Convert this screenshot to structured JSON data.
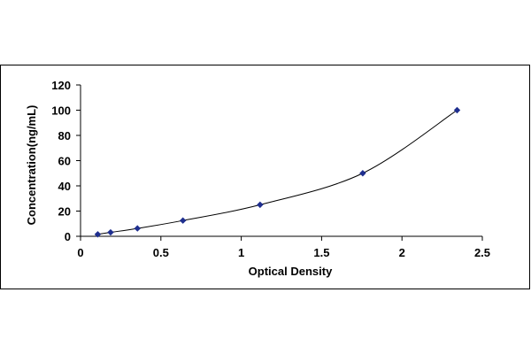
{
  "chart_data": {
    "type": "scatter",
    "title": "",
    "xlabel": "Optical Density",
    "ylabel": "Concentration(ng/mL)",
    "xlim": [
      0,
      2.5
    ],
    "ylim": [
      0,
      120
    ],
    "xticks": [
      "0",
      "0.5",
      "1",
      "1.5",
      "2",
      "2.5"
    ],
    "yticks": [
      "0",
      "20",
      "40",
      "60",
      "80",
      "100",
      "120"
    ],
    "grid": false,
    "legend": "none",
    "trendline": "smooth curve through points",
    "series": [
      {
        "color": "#1f2f8f",
        "x": [
          0.107,
          0.187,
          0.354,
          0.637,
          1.117,
          1.756,
          2.343
        ],
        "y": [
          1.56,
          3.12,
          6.25,
          12.5,
          25,
          50,
          100
        ]
      }
    ]
  }
}
